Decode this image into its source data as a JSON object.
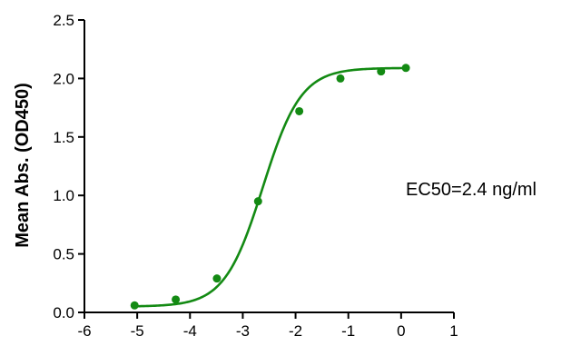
{
  "chart_data": {
    "type": "scatter",
    "title": "",
    "xlabel": "",
    "ylabel": "Mean Abs. (OD450)",
    "xlim": [
      -6,
      1
    ],
    "ylim": [
      0,
      2.5
    ],
    "xticks": [
      -6,
      -5,
      -4,
      -3,
      -2,
      -1,
      0,
      1
    ],
    "yticks": [
      0.0,
      0.5,
      1.0,
      1.5,
      2.0,
      2.5
    ],
    "ytick_labels": [
      "0.0",
      "0.5",
      "1.0",
      "1.5",
      "2.0",
      "2.5"
    ],
    "grid": false,
    "series": [
      {
        "x": [
          -5.05,
          -4.27,
          -3.49,
          -2.71,
          -1.93,
          -1.15,
          -0.38,
          0.09
        ],
        "y": [
          0.06,
          0.11,
          0.29,
          0.95,
          1.72,
          2.0,
          2.06,
          2.09
        ],
        "fit": "four-parameter logistic",
        "color": "#138a13"
      }
    ],
    "fit_params": {
      "bottom": 0.05,
      "top": 2.09,
      "log_ec50": -2.62,
      "hill": 1.2
    },
    "annotations": [
      {
        "text": "EC50=2.4 ng/ml"
      }
    ]
  }
}
